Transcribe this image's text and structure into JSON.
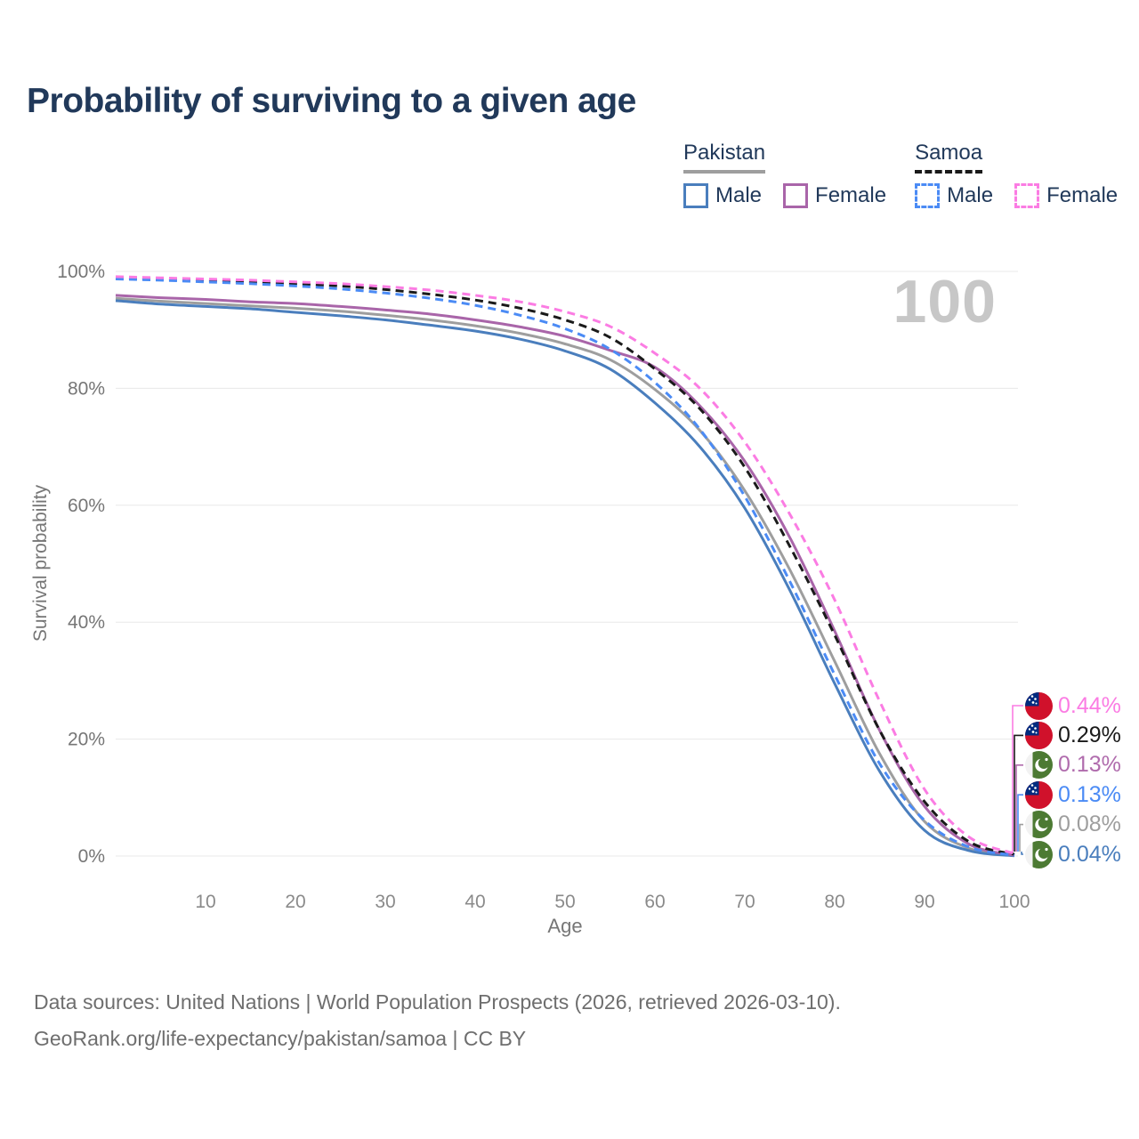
{
  "title": "Probability of surviving to a given age",
  "watermark": "100",
  "legend": {
    "groups": [
      {
        "label": "Pakistan",
        "line_style": "solid",
        "line_color": "#9e9e9e",
        "items": [
          {
            "label": "Male",
            "color": "#4a7ebd"
          },
          {
            "label": "Female",
            "color": "#a965a9"
          }
        ]
      },
      {
        "label": "Samoa",
        "line_style": "dashed",
        "line_color": "#1a1a1a",
        "items": [
          {
            "label": "Male",
            "color": "#4b8bf5"
          },
          {
            "label": "Female",
            "color": "#fb7ce3"
          }
        ]
      }
    ]
  },
  "chart_data": {
    "type": "line",
    "title": "Probability of surviving to a given age",
    "xlabel": "Age",
    "ylabel": "Survival probability",
    "x_range": [
      0,
      100
    ],
    "y_range": [
      0,
      100
    ],
    "grid": "horizontal",
    "x": [
      0,
      5,
      10,
      15,
      20,
      25,
      30,
      35,
      40,
      45,
      50,
      55,
      60,
      65,
      70,
      75,
      80,
      85,
      90,
      95,
      100
    ],
    "x_ticks": [
      {
        "value": 10,
        "label": "10"
      },
      {
        "value": 20,
        "label": "20"
      },
      {
        "value": 30,
        "label": "30"
      },
      {
        "value": 40,
        "label": "40"
      },
      {
        "value": 50,
        "label": "50"
      },
      {
        "value": 60,
        "label": "60"
      },
      {
        "value": 70,
        "label": "70"
      },
      {
        "value": 80,
        "label": "80"
      },
      {
        "value": 90,
        "label": "90"
      },
      {
        "value": 100,
        "label": "100"
      }
    ],
    "y_ticks": [
      {
        "value": 100,
        "label": "100%"
      },
      {
        "value": 80,
        "label": "80%"
      },
      {
        "value": 60,
        "label": "60%"
      },
      {
        "value": 40,
        "label": "40%"
      },
      {
        "value": 20,
        "label": "20%"
      },
      {
        "value": 0,
        "label": "0%"
      }
    ],
    "series": [
      {
        "id": "pakistan",
        "name": "Pakistan",
        "color": "#9e9e9e",
        "dash": "solid",
        "values": [
          95.4,
          94.9,
          94.5,
          94.1,
          93.7,
          93.2,
          92.5,
          91.7,
          90.7,
          89.4,
          87.6,
          84.9,
          79.8,
          72.8,
          62.5,
          49.0,
          33.3,
          17.5,
          5.9,
          1.3,
          0.08
        ]
      },
      {
        "id": "pakistan-male",
        "name": "Pakistan Male",
        "color": "#4a7ebd",
        "dash": "solid",
        "values": [
          95.0,
          94.4,
          94.0,
          93.6,
          93.0,
          92.4,
          91.7,
          90.8,
          89.8,
          88.4,
          86.4,
          83.3,
          77.5,
          70.0,
          59.5,
          45.5,
          29.5,
          14.5,
          4.4,
          0.9,
          0.04
        ]
      },
      {
        "id": "pakistan-female",
        "name": "Pakistan Female",
        "color": "#a965a9",
        "dash": "solid",
        "values": [
          95.9,
          95.5,
          95.2,
          94.8,
          94.5,
          94.0,
          93.4,
          92.7,
          91.7,
          90.5,
          88.9,
          86.5,
          83.6,
          77.0,
          67.5,
          54.5,
          38.5,
          21.5,
          8.5,
          2.0,
          0.13
        ]
      },
      {
        "id": "samoa",
        "name": "Samoa",
        "color": "#1a1a1a",
        "dash": "dashed",
        "values": [
          98.9,
          98.7,
          98.5,
          98.2,
          97.9,
          97.5,
          96.9,
          96.1,
          95.1,
          93.7,
          91.7,
          88.7,
          83.3,
          76.5,
          66.5,
          53.0,
          37.8,
          21.5,
          9.3,
          2.4,
          0.29
        ]
      },
      {
        "id": "samoa-male",
        "name": "Samoa Male",
        "color": "#4b8bf5",
        "dash": "dashed",
        "values": [
          98.7,
          98.5,
          98.2,
          97.9,
          97.5,
          97.0,
          96.3,
          95.4,
          94.2,
          92.5,
          90.2,
          86.7,
          81.0,
          73.0,
          61.5,
          47.0,
          31.0,
          15.8,
          6.1,
          1.5,
          0.13
        ]
      },
      {
        "id": "samoa-female",
        "name": "Samoa Female",
        "color": "#fb7ce3",
        "dash": "dashed",
        "values": [
          99.1,
          98.9,
          98.7,
          98.5,
          98.2,
          97.9,
          97.4,
          96.8,
          95.9,
          94.8,
          93.1,
          90.6,
          86.0,
          80.0,
          70.8,
          58.5,
          43.8,
          26.5,
          11.4,
          3.2,
          0.44
        ]
      }
    ],
    "end_labels": [
      {
        "series_id": "samoa-female",
        "flag": "samoa",
        "value": "0.44%",
        "color": "#fb7ce3"
      },
      {
        "series_id": "samoa",
        "flag": "samoa",
        "value": "0.29%",
        "color": "#1a1a1a"
      },
      {
        "series_id": "pakistan-female",
        "flag": "pakistan",
        "value": "0.13%",
        "color": "#b06cad"
      },
      {
        "series_id": "samoa-male",
        "flag": "samoa",
        "value": "0.13%",
        "color": "#4b8bf5"
      },
      {
        "series_id": "pakistan",
        "flag": "pakistan",
        "value": "0.08%",
        "color": "#9e9e9e"
      },
      {
        "series_id": "pakistan-male",
        "flag": "pakistan",
        "value": "0.04%",
        "color": "#4a7ebd"
      }
    ]
  },
  "footer": {
    "line1": "Data sources: United Nations | World Population Prospects (2026, retrieved 2026-03-10).",
    "line2": "GeoRank.org/life-expectancy/pakistan/samoa | CC BY"
  }
}
